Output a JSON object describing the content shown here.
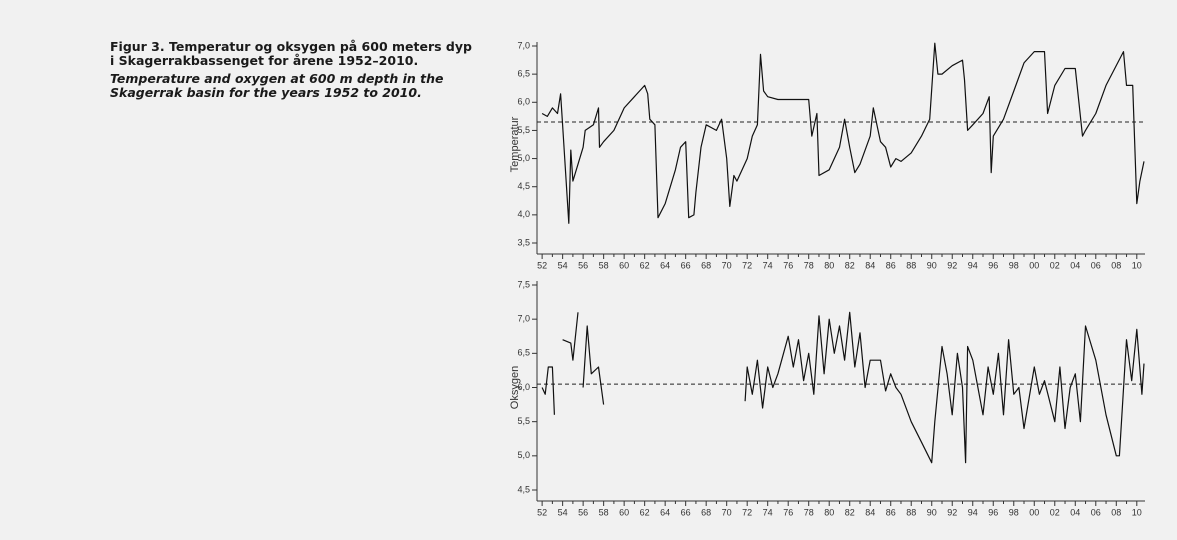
{
  "caption": {
    "title_no": "Figur 3. Temperatur og oksygen på 600 meters dyp i Skagerrakbassenget for årene 1952–2010.",
    "title_en": "Temperature and oxygen at 600 m depth in the Skagerrak basin for the years 1952 to 2010."
  },
  "chart_data": [
    {
      "type": "line",
      "ylabel": "Temperatur",
      "series": [
        {
          "color": "#111111",
          "x": [
            1952.0,
            1952.5,
            1953.0,
            1953.5,
            1953.8,
            1954.0,
            1954.6,
            1954.8,
            1955.0,
            1955.5,
            1956.0,
            1956.2,
            1957.0,
            1957.5,
            1957.6,
            1958.0,
            1959.0,
            1960.0,
            1961.0,
            1962.0,
            1962.3,
            1962.5,
            1963.0,
            1963.3,
            1964.0,
            1964.5,
            1965.0,
            1965.5,
            1966.0,
            1966.3,
            1966.8,
            1967.0,
            1967.5,
            1968.0,
            1969.0,
            1969.5,
            1970.0,
            1970.3,
            1970.7,
            1971.0,
            1972.0,
            1972.5,
            1973.0,
            1973.3,
            1973.6,
            1974.0,
            1975.0,
            1976.0,
            1977.0,
            1978.0,
            1978.3,
            1978.8,
            1979.0,
            1980.0,
            1981.0,
            1981.5,
            1982.0,
            1982.5,
            1983.0,
            1984.0,
            1984.3,
            1985.0,
            1985.5,
            1986.0,
            1986.5,
            1987.0,
            1988.0,
            1989.0,
            1989.8,
            1990.3,
            1990.6,
            1991.0,
            1992.0,
            1993.0,
            1993.2,
            1993.5,
            1994.0,
            1995.0,
            1995.6,
            1995.8,
            1996.0,
            1997.0,
            1998.0,
            1999.0,
            2000.0,
            2001.0,
            2001.3,
            2002.0,
            2003.0,
            2004.0,
            2004.7,
            2005.0,
            2006.0,
            2007.0,
            2008.7,
            2009.0,
            2009.6,
            2010.0,
            2010.3,
            2010.7
          ],
          "values": [
            5.8,
            5.75,
            5.9,
            5.8,
            6.15,
            5.6,
            3.85,
            5.15,
            4.6,
            4.9,
            5.2,
            5.5,
            5.6,
            5.9,
            5.2,
            5.3,
            5.5,
            5.9,
            6.1,
            6.3,
            6.15,
            5.7,
            5.6,
            3.95,
            4.2,
            4.5,
            4.8,
            5.2,
            5.3,
            3.95,
            4.0,
            4.4,
            5.2,
            5.6,
            5.5,
            5.7,
            5.0,
            4.15,
            4.7,
            4.6,
            5.0,
            5.4,
            5.6,
            6.85,
            6.2,
            6.1,
            6.05,
            6.05,
            6.05,
            6.05,
            5.4,
            5.8,
            4.7,
            4.8,
            5.2,
            5.7,
            5.2,
            4.75,
            4.9,
            5.4,
            5.9,
            5.3,
            5.2,
            4.85,
            5.0,
            4.95,
            5.1,
            5.4,
            5.7,
            7.05,
            6.5,
            6.5,
            6.65,
            6.75,
            6.4,
            5.5,
            5.6,
            5.8,
            6.1,
            4.75,
            5.4,
            5.7,
            6.2,
            6.7,
            6.9,
            6.9,
            5.8,
            6.3,
            6.6,
            6.6,
            5.4,
            5.5,
            5.8,
            6.3,
            6.9,
            6.3,
            6.3,
            4.2,
            4.6,
            4.95
          ]
        }
      ],
      "reference_line": 5.65,
      "xlim": [
        1951.5,
        2010.8
      ],
      "xticks": [
        {
          "value": 1952,
          "label": "52"
        },
        {
          "value": 1954,
          "label": "54"
        },
        {
          "value": 1956,
          "label": "56"
        },
        {
          "value": 1958,
          "label": "58"
        },
        {
          "value": 1960,
          "label": "60"
        },
        {
          "value": 1962,
          "label": "62"
        },
        {
          "value": 1964,
          "label": "64"
        },
        {
          "value": 1966,
          "label": "66"
        },
        {
          "value": 1968,
          "label": "68"
        },
        {
          "value": 1970,
          "label": "70"
        },
        {
          "value": 1972,
          "label": "72"
        },
        {
          "value": 1974,
          "label": "74"
        },
        {
          "value": 1976,
          "label": "76"
        },
        {
          "value": 1978,
          "label": "78"
        },
        {
          "value": 1980,
          "label": "80"
        },
        {
          "value": 1982,
          "label": "82"
        },
        {
          "value": 1984,
          "label": "84"
        },
        {
          "value": 1986,
          "label": "86"
        },
        {
          "value": 1988,
          "label": "88"
        },
        {
          "value": 1990,
          "label": "90"
        },
        {
          "value": 1992,
          "label": "92"
        },
        {
          "value": 1994,
          "label": "94"
        },
        {
          "value": 1996,
          "label": "96"
        },
        {
          "value": 1998,
          "label": "98"
        },
        {
          "value": 2000,
          "label": "00"
        },
        {
          "value": 2002,
          "label": "02"
        },
        {
          "value": 2004,
          "label": "04"
        },
        {
          "value": 2006,
          "label": "06"
        },
        {
          "value": 2008,
          "label": "08"
        },
        {
          "value": 2010,
          "label": "10"
        }
      ],
      "ylim": [
        3.5,
        7.0
      ],
      "yticks": [
        {
          "value": 3.5,
          "label": "3,5"
        },
        {
          "value": 4.0,
          "label": "4,0"
        },
        {
          "value": 4.5,
          "label": "4,5"
        },
        {
          "value": 5.0,
          "label": "5,0"
        },
        {
          "value": 5.5,
          "label": "5,5"
        },
        {
          "value": 6.0,
          "label": "6,0"
        },
        {
          "value": 6.5,
          "label": "6,5"
        },
        {
          "value": 7.0,
          "label": "7,0"
        }
      ]
    },
    {
      "type": "line",
      "ylabel": "Oksygen",
      "series": [
        {
          "color": "#111111",
          "x": [
            1952.0,
            1952.3,
            1952.6,
            1953.0,
            1953.2,
            1953.6,
            1954.0,
            1954.8,
            1955.0,
            1955.5,
            1955.8,
            1956.0,
            1956.4,
            1956.8,
            1957.5,
            1958.0,
            1965.0,
            1971.8,
            1972.0,
            1972.5,
            1973.0,
            1973.5,
            1974.0,
            1974.5,
            1975.0,
            1976.0,
            1976.5,
            1977.0,
            1977.5,
            1978.0,
            1978.5,
            1979.0,
            1979.5,
            1980.0,
            1980.5,
            1981.0,
            1981.5,
            1982.0,
            1982.5,
            1983.0,
            1983.5,
            1984.0,
            1985.0,
            1985.5,
            1986.0,
            1986.5,
            1987.0,
            1988.0,
            1989.0,
            1990.0,
            1990.3,
            1991.0,
            1991.5,
            1992.0,
            1992.5,
            1993.0,
            1993.3,
            1993.5,
            1994.0,
            1994.5,
            1995.0,
            1995.5,
            1996.0,
            1996.5,
            1997.0,
            1997.5,
            1998.0,
            1998.5,
            1999.0,
            2000.0,
            2000.5,
            2001.0,
            2002.0,
            2002.5,
            2003.0,
            2003.5,
            2004.0,
            2004.5,
            2005.0,
            2006.0,
            2007.0,
            2008.0,
            2008.3,
            2009.0,
            2009.5,
            2010.0,
            2010.5,
            2010.7
          ],
          "values": [
            6.0,
            5.9,
            6.3,
            6.3,
            5.6,
            null,
            6.7,
            6.65,
            6.4,
            7.1,
            null,
            6.0,
            6.9,
            6.2,
            6.3,
            5.75,
            null,
            5.8,
            6.3,
            5.9,
            6.4,
            5.7,
            6.3,
            6.0,
            6.2,
            6.75,
            6.3,
            6.7,
            6.1,
            6.5,
            5.9,
            7.05,
            6.2,
            7.0,
            6.5,
            6.9,
            6.4,
            7.1,
            6.3,
            6.8,
            6.0,
            6.4,
            6.4,
            5.95,
            6.2,
            6.0,
            5.9,
            5.5,
            5.2,
            4.9,
            5.5,
            6.6,
            6.2,
            5.6,
            6.5,
            6.0,
            4.9,
            6.6,
            6.4,
            6.0,
            5.6,
            6.3,
            5.9,
            6.5,
            5.6,
            6.7,
            5.9,
            6.0,
            5.4,
            6.3,
            5.9,
            6.1,
            5.5,
            6.3,
            5.4,
            6.0,
            6.2,
            5.5,
            6.9,
            6.4,
            5.6,
            5.0,
            5.0,
            6.7,
            6.1,
            6.85,
            5.9,
            6.35
          ]
        }
      ],
      "reference_line": 6.05,
      "xlim": [
        1951.5,
        2010.8
      ],
      "xticks": [
        {
          "value": 1952,
          "label": "52"
        },
        {
          "value": 1954,
          "label": "54"
        },
        {
          "value": 1956,
          "label": "56"
        },
        {
          "value": 1958,
          "label": "58"
        },
        {
          "value": 1960,
          "label": "60"
        },
        {
          "value": 1962,
          "label": "62"
        },
        {
          "value": 1964,
          "label": "64"
        },
        {
          "value": 1966,
          "label": "66"
        },
        {
          "value": 1968,
          "label": "68"
        },
        {
          "value": 1970,
          "label": "70"
        },
        {
          "value": 1972,
          "label": "72"
        },
        {
          "value": 1974,
          "label": "74"
        },
        {
          "value": 1976,
          "label": "76"
        },
        {
          "value": 1978,
          "label": "78"
        },
        {
          "value": 1980,
          "label": "80"
        },
        {
          "value": 1982,
          "label": "82"
        },
        {
          "value": 1984,
          "label": "84"
        },
        {
          "value": 1986,
          "label": "86"
        },
        {
          "value": 1988,
          "label": "88"
        },
        {
          "value": 1990,
          "label": "90"
        },
        {
          "value": 1992,
          "label": "92"
        },
        {
          "value": 1994,
          "label": "94"
        },
        {
          "value": 1996,
          "label": "96"
        },
        {
          "value": 1998,
          "label": "98"
        },
        {
          "value": 2000,
          "label": "00"
        },
        {
          "value": 2002,
          "label": "02"
        },
        {
          "value": 2004,
          "label": "04"
        },
        {
          "value": 2006,
          "label": "06"
        },
        {
          "value": 2008,
          "label": "08"
        },
        {
          "value": 2010,
          "label": "10"
        }
      ],
      "ylim": [
        4.5,
        7.5
      ],
      "yticks": [
        {
          "value": 4.5,
          "label": "4,5"
        },
        {
          "value": 5.0,
          "label": "5,0"
        },
        {
          "value": 5.5,
          "label": "5,5"
        },
        {
          "value": 6.0,
          "label": "6,0"
        },
        {
          "value": 6.5,
          "label": "6,5"
        },
        {
          "value": 7.0,
          "label": "7,0"
        },
        {
          "value": 7.5,
          "label": "7,5"
        }
      ]
    }
  ]
}
